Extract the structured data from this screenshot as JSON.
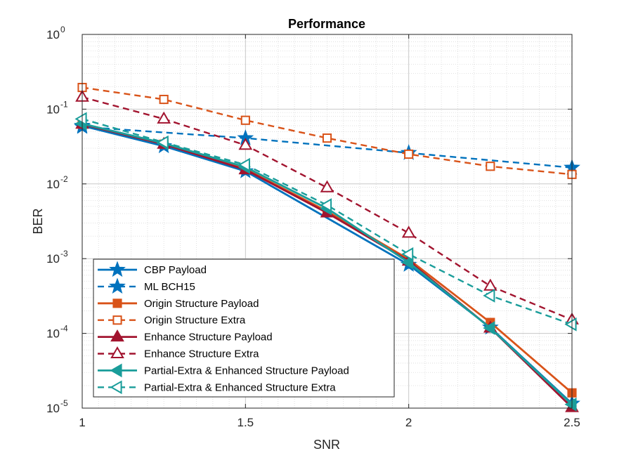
{
  "chart_data": {
    "type": "line",
    "title": "Performance",
    "xlabel": "SNR",
    "ylabel": "BER",
    "yscale": "log",
    "xlim": [
      1,
      2.5
    ],
    "ylim": [
      1e-05,
      1
    ],
    "grid": true,
    "minor_grid": true,
    "legend_position": "bottom-left",
    "x_ticks": [
      {
        "value": 1,
        "label": "1"
      },
      {
        "value": 1.5,
        "label": "1.5"
      },
      {
        "value": 2,
        "label": "2"
      },
      {
        "value": 2.5,
        "label": "2.5"
      }
    ],
    "y_ticks": [
      {
        "exp": 0,
        "label_base": "10",
        "label_exp": "0"
      },
      {
        "exp": -1,
        "label_base": "10",
        "label_exp": "-1"
      },
      {
        "exp": -2,
        "label_base": "10",
        "label_exp": "-2"
      },
      {
        "exp": -3,
        "label_base": "10",
        "label_exp": "-3"
      },
      {
        "exp": -4,
        "label_base": "10",
        "label_exp": "-4"
      },
      {
        "exp": -5,
        "label_base": "10",
        "label_exp": "-5"
      }
    ],
    "series": [
      {
        "name": "CBP Payload",
        "color": "#0072BD",
        "dash": "solid",
        "marker": "star",
        "filled": true,
        "x": [
          1,
          1.25,
          1.5,
          2,
          2.25,
          2.5
        ],
        "y": [
          0.06,
          0.032,
          0.0148,
          0.00083,
          0.00012,
          1.15e-05
        ]
      },
      {
        "name": "ML BCH15",
        "color": "#0072BD",
        "dash": "dashed",
        "marker": "star",
        "filled": true,
        "x": [
          1,
          1.5,
          2,
          2.5
        ],
        "y": [
          0.058,
          0.041,
          0.026,
          0.0165
        ]
      },
      {
        "name": "Origin Structure Payload",
        "color": "#D95319",
        "dash": "solid",
        "marker": "square",
        "filled": true,
        "x": [
          1,
          1.25,
          1.5,
          1.75,
          2,
          2.25,
          2.5
        ],
        "y": [
          0.063,
          0.034,
          0.0158,
          0.0043,
          0.00098,
          0.00014,
          1.6e-05
        ]
      },
      {
        "name": "Origin Structure Extra",
        "color": "#D95319",
        "dash": "dashed",
        "marker": "square",
        "filled": false,
        "x": [
          1,
          1.25,
          1.5,
          1.75,
          2,
          2.25,
          2.5
        ],
        "y": [
          0.195,
          0.135,
          0.071,
          0.041,
          0.025,
          0.0172,
          0.0134
        ]
      },
      {
        "name": "Enhance Structure Payload",
        "color": "#A2142F",
        "dash": "solid",
        "marker": "triangle",
        "filled": true,
        "x": [
          1,
          1.25,
          1.5,
          1.75,
          2,
          2.25,
          2.5
        ],
        "y": [
          0.063,
          0.034,
          0.0155,
          0.0041,
          0.00093,
          0.000118,
          1.02e-05
        ]
      },
      {
        "name": "Enhance Structure Extra",
        "color": "#A2142F",
        "dash": "dashed",
        "marker": "triangle",
        "filled": false,
        "x": [
          1,
          1.25,
          1.5,
          1.75,
          2,
          2.25,
          2.5
        ],
        "y": [
          0.145,
          0.074,
          0.033,
          0.0089,
          0.0022,
          0.00043,
          0.000152
        ]
      },
      {
        "name": "Partial-Extra & Enhanced Structure Payload",
        "color": "#1A9D9A",
        "dash": "solid",
        "marker": "triangle-left",
        "filled": true,
        "x": [
          1,
          1.25,
          1.5,
          1.75,
          2,
          2.25,
          2.5
        ],
        "y": [
          0.064,
          0.035,
          0.0168,
          0.0047,
          0.00089,
          0.000118,
          1.12e-05
        ]
      },
      {
        "name": "Partial-Extra & Enhanced Structure Extra",
        "color": "#1A9D9A",
        "dash": "dashed",
        "marker": "triangle-left",
        "filled": false,
        "x": [
          1,
          1.25,
          1.5,
          1.75,
          2,
          2.25,
          2.5
        ],
        "y": [
          0.074,
          0.036,
          0.018,
          0.0052,
          0.00115,
          0.00032,
          0.000132
        ]
      }
    ]
  }
}
